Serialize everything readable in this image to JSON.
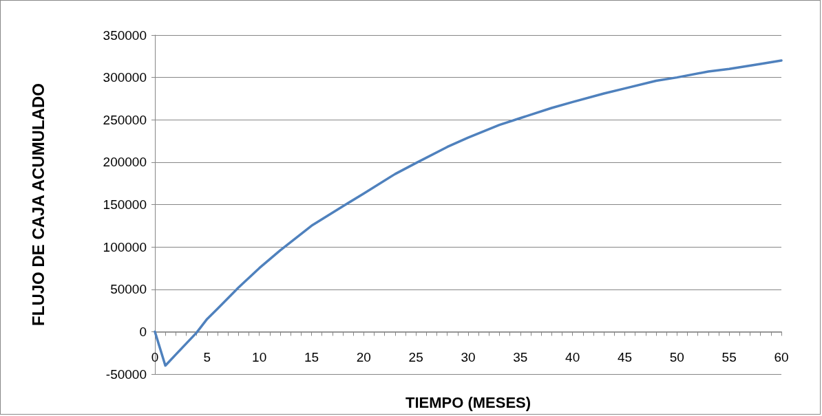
{
  "chart_data": {
    "type": "line",
    "xlabel": "TIEMPO (MESES)",
    "ylabel": "FLUJO DE CAJA ACUMULADO",
    "x": [
      0,
      1,
      2,
      3,
      4,
      5,
      6,
      8,
      10,
      12,
      15,
      18,
      20,
      23,
      25,
      28,
      30,
      33,
      35,
      38,
      40,
      43,
      45,
      48,
      50,
      53,
      55,
      58,
      60
    ],
    "series": [
      {
        "color": "#4f81bd",
        "values": [
          0,
          -40000,
          -27000,
          -14000,
          -1000,
          15000,
          27000,
          52000,
          75000,
          96000,
          125000,
          148000,
          163000,
          186000,
          199000,
          218000,
          229000,
          244000,
          252000,
          264000,
          271000,
          281000,
          287000,
          296000,
          300000,
          307000,
          310000,
          316000,
          320000
        ]
      }
    ],
    "xlim": [
      0,
      60
    ],
    "xticks": [
      0,
      5,
      10,
      15,
      20,
      25,
      30,
      35,
      40,
      45,
      50,
      55,
      60
    ],
    "ylim": [
      -50000,
      350000
    ],
    "yticks": [
      -50000,
      0,
      50000,
      100000,
      150000,
      200000,
      250000,
      300000,
      350000
    ],
    "grid": "y",
    "marker": "none",
    "line_style": "solid"
  }
}
